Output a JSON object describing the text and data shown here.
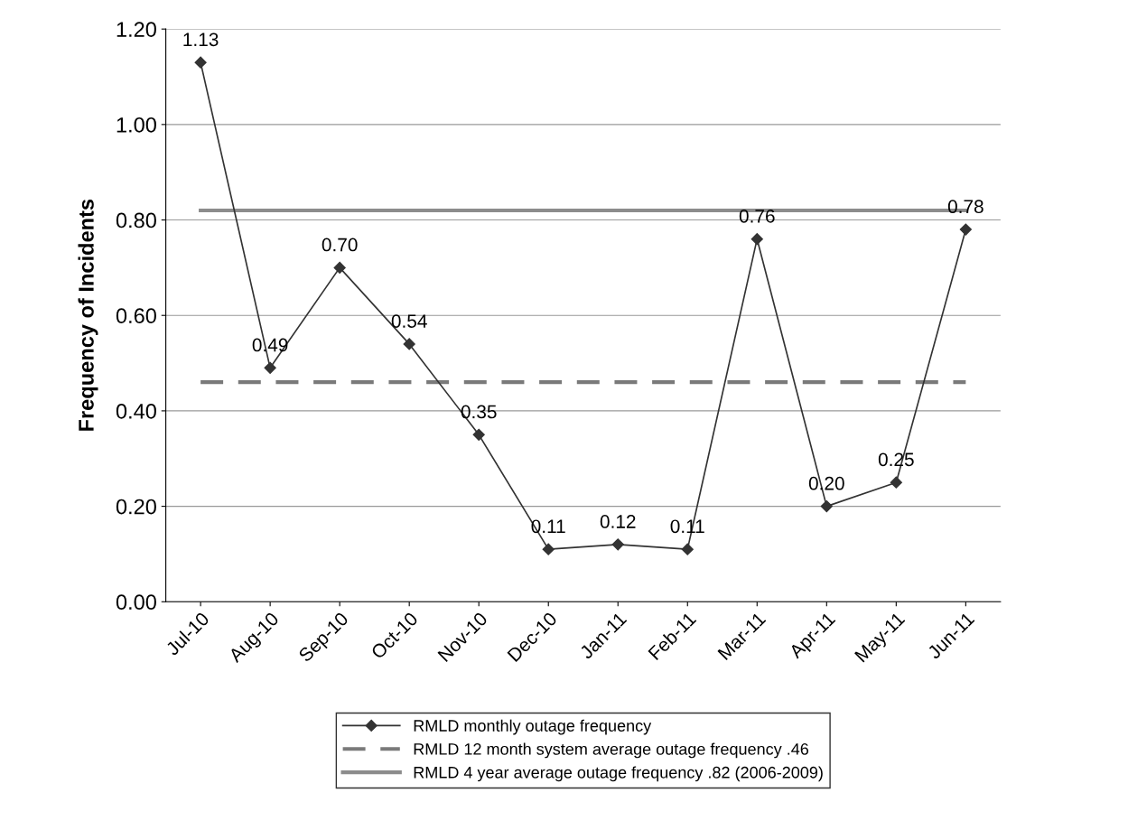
{
  "chart_data": {
    "type": "line",
    "ylabel": "Frequency of Incidents",
    "categories": [
      "Jul-10",
      "Aug-10",
      "Sep-10",
      "Oct-10",
      "Nov-10",
      "Dec-10",
      "Jan-11",
      "Feb-11",
      "Mar-11",
      "Apr-11",
      "May-11",
      "Jun-11"
    ],
    "series": [
      {
        "name": "RMLD monthly outage frequency",
        "color": "#333333",
        "marker": "diamond",
        "line_style": "solid",
        "value_labels": [
          "1.13",
          "0.49",
          "0.70",
          "0.54",
          "0.35",
          "0.11",
          "0.12",
          "0.11",
          "0.76",
          "0.20",
          "0.25",
          "0.78"
        ],
        "values": [
          1.13,
          0.49,
          0.7,
          0.54,
          0.35,
          0.11,
          0.12,
          0.11,
          0.76,
          0.2,
          0.25,
          0.78
        ]
      },
      {
        "name": "RMLD 12 month system average outage frequency .46",
        "color": "#7a7a7a",
        "marker": "none",
        "line_style": "dashed",
        "values": [
          0.46,
          0.46,
          0.46,
          0.46,
          0.46,
          0.46,
          0.46,
          0.46,
          0.46,
          0.46,
          0.46,
          0.46
        ]
      },
      {
        "name": "RMLD 4 year average outage frequency .82 (2006-2009)",
        "color": "#8c8c8c",
        "marker": "none",
        "line_style": "solid",
        "values": [
          0.82,
          0.82,
          0.82,
          0.82,
          0.82,
          0.82,
          0.82,
          0.82,
          0.82,
          0.82,
          0.82,
          0.82
        ]
      }
    ],
    "ylim": [
      0,
      1.2
    ],
    "yticks": [
      {
        "value": 0,
        "label": "0.00"
      },
      {
        "value": 0.2,
        "label": "0.20"
      },
      {
        "value": 0.4,
        "label": "0.40"
      },
      {
        "value": 0.6,
        "label": "0.60"
      },
      {
        "value": 0.8,
        "label": "0.80"
      },
      {
        "value": 1.0,
        "label": "1.00"
      },
      {
        "value": 1.2,
        "label": "1.20"
      }
    ],
    "grid": "y",
    "legend": "bottom"
  }
}
